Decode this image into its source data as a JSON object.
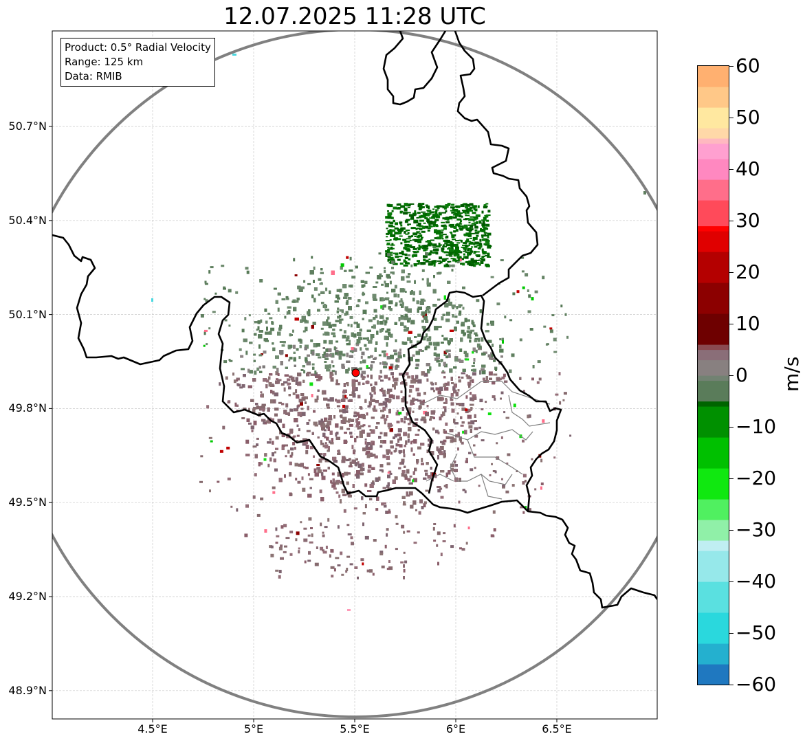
{
  "title": "12.07.2025 11:28 UTC",
  "info": {
    "product": "Product: 0.5° Radial Velocity",
    "range": "Range: 125 km",
    "data": "Data: RMIB"
  },
  "map": {
    "lon_range": [
      4.0,
      7.0
    ],
    "lat_range": [
      48.8,
      51.0
    ],
    "radar_site": {
      "lon": 5.505,
      "lat": 49.914,
      "color": "#ff0000"
    },
    "range_ring_color": "#808080",
    "border_color": "#000000",
    "admin_border_color": "#808080",
    "gridlines": true
  },
  "axes": {
    "lon_ticks": [
      {
        "value": 4.5,
        "label": "4.5°E"
      },
      {
        "value": 5.0,
        "label": "5°E"
      },
      {
        "value": 5.5,
        "label": "5.5°E"
      },
      {
        "value": 6.0,
        "label": "6°E"
      },
      {
        "value": 6.5,
        "label": "6.5°E"
      }
    ],
    "lat_ticks": [
      {
        "value": 50.7,
        "label": "50.7°N"
      },
      {
        "value": 50.4,
        "label": "50.4°N"
      },
      {
        "value": 50.1,
        "label": "50.1°N"
      },
      {
        "value": 49.8,
        "label": "49.8°N"
      },
      {
        "value": 49.5,
        "label": "49.5°N"
      },
      {
        "value": 49.2,
        "label": "49.2°N"
      },
      {
        "value": 48.9,
        "label": "48.9°N"
      }
    ]
  },
  "colorbar": {
    "unit": "m/s",
    "range": [
      -60,
      60
    ],
    "ticks": [
      {
        "value": 60,
        "label": "60"
      },
      {
        "value": 50,
        "label": "50"
      },
      {
        "value": 40,
        "label": "40"
      },
      {
        "value": 30,
        "label": "30"
      },
      {
        "value": 20,
        "label": "20"
      },
      {
        "value": 10,
        "label": "10"
      },
      {
        "value": 0,
        "label": "0"
      },
      {
        "value": -10,
        "label": "−10"
      },
      {
        "value": -20,
        "label": "−20"
      },
      {
        "value": -30,
        "label": "−30"
      },
      {
        "value": -40,
        "label": "−40"
      },
      {
        "value": -50,
        "label": "−50"
      },
      {
        "value": -60,
        "label": "−60"
      }
    ],
    "stops": [
      {
        "value": -60,
        "color": "#1f78c0"
      },
      {
        "value": -56,
        "color": "#24b0cf"
      },
      {
        "value": -52,
        "color": "#2ad8dd"
      },
      {
        "value": -46,
        "color": "#5ae0e0"
      },
      {
        "value": -40,
        "color": "#96e8ea"
      },
      {
        "value": -34,
        "color": "#c0eef2"
      },
      {
        "value": -32,
        "color": "#90f0a8"
      },
      {
        "value": -28,
        "color": "#50f060"
      },
      {
        "value": -24,
        "color": "#10e810"
      },
      {
        "value": -18,
        "color": "#00c000"
      },
      {
        "value": -12,
        "color": "#009000"
      },
      {
        "value": -6,
        "color": "#006400"
      },
      {
        "value": -5,
        "color": "#5a7c5a"
      },
      {
        "value": -1,
        "color": "#728272"
      },
      {
        "value": 0,
        "color": "#888080"
      },
      {
        "value": 3,
        "color": "#8a6e78"
      },
      {
        "value": 5,
        "color": "#8a4a50"
      },
      {
        "value": 6,
        "color": "#6e0000"
      },
      {
        "value": 12,
        "color": "#8c0000"
      },
      {
        "value": 18,
        "color": "#b40000"
      },
      {
        "value": 24,
        "color": "#e00000"
      },
      {
        "value": 28,
        "color": "#ff0000"
      },
      {
        "value": 29,
        "color": "#ff4a5a"
      },
      {
        "value": 34,
        "color": "#ff6e8a"
      },
      {
        "value": 38,
        "color": "#ff88c0"
      },
      {
        "value": 42,
        "color": "#ffa0d0"
      },
      {
        "value": 45,
        "color": "#ffb8c0"
      },
      {
        "value": 46,
        "color": "#ffd8a8"
      },
      {
        "value": 48,
        "color": "#ffe8a0"
      },
      {
        "value": 52,
        "color": "#ffc888"
      },
      {
        "value": 56,
        "color": "#ffb070"
      },
      {
        "value": 60,
        "color": "#ffa060"
      }
    ]
  }
}
